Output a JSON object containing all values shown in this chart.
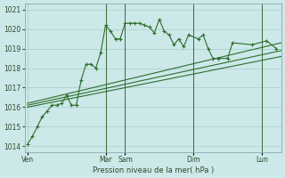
{
  "background_color": "#cce8e8",
  "grid_color": "#aacccc",
  "line_color": "#2d6e2d",
  "marker_color": "#2d6e2d",
  "yticks": [
    1014,
    1015,
    1016,
    1017,
    1018,
    1019,
    1020,
    1021
  ],
  "xlabel": "Pression niveau de la mer( hPa )",
  "day_labels": [
    "Ven",
    "Mar",
    "Sam",
    "Dim",
    "Lun"
  ],
  "day_x": [
    0,
    8,
    10,
    17,
    24
  ],
  "vline_x": [
    8,
    10,
    17,
    24
  ],
  "xlim": [
    -0.3,
    26
  ],
  "ylim": [
    1013.7,
    1021.3
  ],
  "main_series_x": [
    0,
    0.5,
    1.0,
    1.5,
    2.0,
    2.5,
    3.0,
    3.5,
    4.0,
    4.5,
    5.0,
    5.5,
    6.0,
    6.5,
    7.0,
    7.5,
    8.0,
    8.5,
    9.0,
    9.5,
    10.0,
    10.5,
    11.0,
    11.5,
    12.0,
    12.5,
    13.0,
    13.5,
    14.0,
    14.5,
    15.0,
    15.5,
    16.0,
    16.5,
    17.5,
    18.0,
    18.5,
    19.0,
    19.5,
    20.5,
    21.0,
    23.0,
    24.5,
    25.5
  ],
  "main_series_y": [
    1014.1,
    1014.5,
    1015.0,
    1015.5,
    1015.8,
    1016.1,
    1016.1,
    1016.2,
    1016.6,
    1016.1,
    1016.1,
    1017.4,
    1018.2,
    1018.2,
    1018.0,
    1018.8,
    1020.2,
    1019.9,
    1019.5,
    1019.5,
    1020.3,
    1020.3,
    1020.3,
    1020.3,
    1020.2,
    1020.1,
    1019.8,
    1020.5,
    1019.9,
    1019.7,
    1019.2,
    1019.5,
    1019.1,
    1019.7,
    1019.5,
    1019.7,
    1019.0,
    1018.5,
    1018.5,
    1018.5,
    1019.3,
    1019.2,
    1019.4,
    1019.0
  ],
  "fan_lines": [
    {
      "x": [
        0,
        26
      ],
      "y": [
        1016.0,
        1018.6
      ]
    },
    {
      "x": [
        0,
        26
      ],
      "y": [
        1016.1,
        1018.9
      ]
    },
    {
      "x": [
        0,
        26
      ],
      "y": [
        1016.2,
        1019.3
      ]
    }
  ],
  "figsize": [
    3.2,
    2.0
  ],
  "dpi": 100
}
